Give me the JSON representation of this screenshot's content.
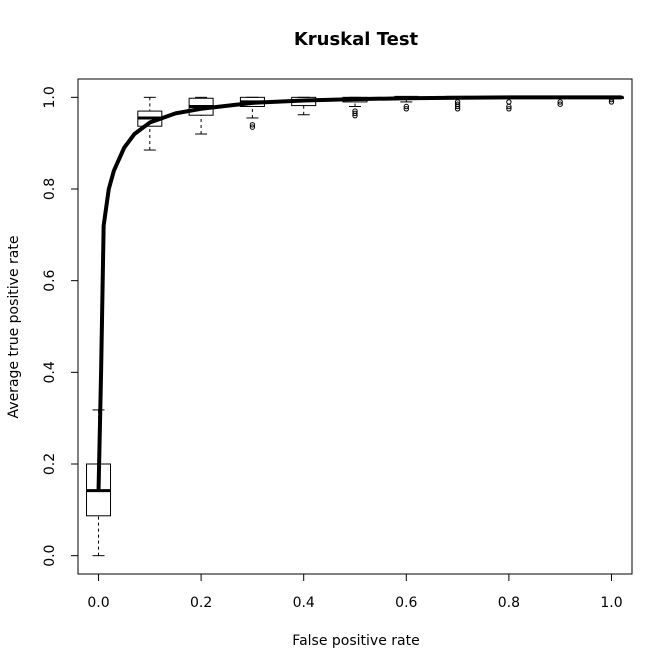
{
  "chart_data": {
    "type": "boxplot",
    "title": "Kruskal Test",
    "x_label": "False positive rate",
    "y_label": "Average true positive rate",
    "xlim": [
      -0.04,
      1.04
    ],
    "ylim": [
      -0.04,
      1.04
    ],
    "xticks": [
      {
        "value": 0,
        "label": "0.0"
      },
      {
        "value": 0.2,
        "label": "0.2"
      },
      {
        "value": 0.4,
        "label": "0.4"
      },
      {
        "value": 0.6,
        "label": "0.6"
      },
      {
        "value": 0.8,
        "label": "0.8"
      },
      {
        "value": 1,
        "label": "1.0"
      }
    ],
    "yticks": [
      {
        "value": 0,
        "label": "0.0"
      },
      {
        "value": 0.2,
        "label": "0.2"
      },
      {
        "value": 0.4,
        "label": "0.4"
      },
      {
        "value": 0.6,
        "label": "0.6"
      },
      {
        "value": 0.8,
        "label": "0.8"
      },
      {
        "value": 1,
        "label": "1.0"
      }
    ],
    "color": "#000000",
    "boxes": [
      {
        "x": 0,
        "whisker_low": 0,
        "q1": 0.087,
        "median": 0.142,
        "q3": 0.2,
        "whisker_high": 0.318,
        "outliers": []
      },
      {
        "x": 0.1,
        "whisker_low": 0.885,
        "q1": 0.937,
        "median": 0.955,
        "q3": 0.97,
        "whisker_high": 1,
        "outliers": []
      },
      {
        "x": 0.2,
        "whisker_low": 0.92,
        "q1": 0.961,
        "median": 0.98,
        "q3": 0.998,
        "whisker_high": 1,
        "outliers": []
      },
      {
        "x": 0.3,
        "whisker_low": 0.955,
        "q1": 0.98,
        "median": 0.99,
        "q3": 1,
        "whisker_high": 1,
        "outliers": [
          0.935,
          0.94
        ]
      },
      {
        "x": 0.4,
        "whisker_low": 0.962,
        "q1": 0.982,
        "median": 0.993,
        "q3": 1,
        "whisker_high": 1,
        "outliers": []
      },
      {
        "x": 0.5,
        "whisker_low": 0.98,
        "q1": 0.99,
        "median": 0.997,
        "q3": 1,
        "whisker_high": 1,
        "outliers": [
          0.96,
          0.965,
          0.97
        ]
      },
      {
        "x": 0.6,
        "whisker_low": 0.99,
        "q1": 0.997,
        "median": 1,
        "q3": 1,
        "whisker_high": 1,
        "outliers": [
          0.975,
          0.98
        ]
      },
      {
        "x": 0.7,
        "whisker_low": 1,
        "q1": 1,
        "median": 1,
        "q3": 1,
        "whisker_high": 1,
        "outliers": [
          0.975,
          0.98,
          0.985,
          0.99
        ]
      },
      {
        "x": 0.8,
        "whisker_low": 1,
        "q1": 1,
        "median": 1,
        "q3": 1,
        "whisker_high": 1,
        "outliers": [
          0.975,
          0.98,
          0.99
        ]
      },
      {
        "x": 0.9,
        "whisker_low": 1,
        "q1": 1,
        "median": 1,
        "q3": 1,
        "whisker_high": 1,
        "outliers": [
          0.985,
          0.99
        ]
      },
      {
        "x": 1,
        "whisker_low": 1,
        "q1": 1,
        "median": 1,
        "q3": 1,
        "whisker_high": 1,
        "outliers": [
          0.99,
          0.995
        ]
      }
    ],
    "curve": {
      "x": [
        0,
        0.005,
        0.01,
        0.02,
        0.03,
        0.05,
        0.07,
        0.1,
        0.15,
        0.2,
        0.3,
        0.4,
        0.5,
        0.6,
        0.7,
        0.8,
        0.9,
        1,
        1.02
      ],
      "values": [
        0.14,
        0.4,
        0.72,
        0.8,
        0.84,
        0.89,
        0.92,
        0.945,
        0.965,
        0.975,
        0.988,
        0.993,
        0.996,
        0.998,
        0.999,
        1,
        1,
        1,
        1
      ]
    }
  }
}
